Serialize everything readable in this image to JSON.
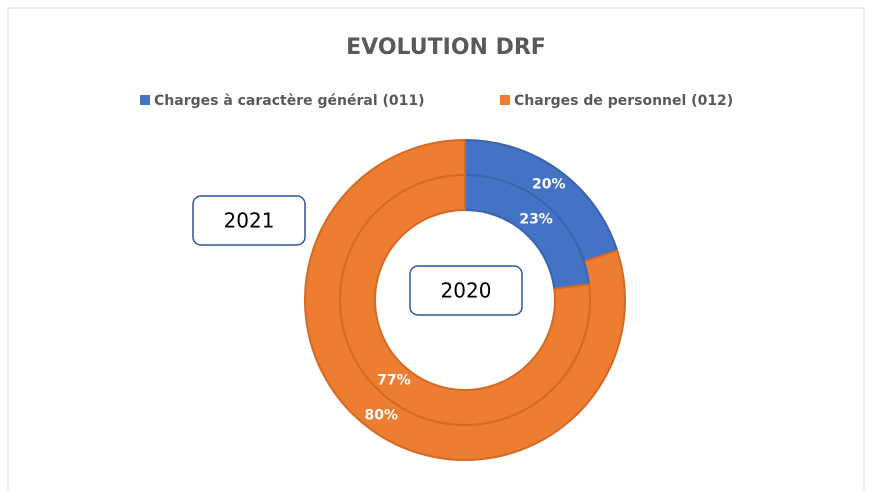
{
  "chart_data": {
    "type": "doughnut",
    "title": "EVOLUTION DRF",
    "categories": [
      "Charges à caractère général (011)",
      "Charges de personnel (012)"
    ],
    "colors": [
      "#4472c4",
      "#ed7d31"
    ],
    "series": [
      {
        "name": "2021",
        "values": [
          20,
          80
        ],
        "value_labels": [
          "20%",
          "80%"
        ]
      },
      {
        "name": "2020",
        "values": [
          23,
          77
        ],
        "value_labels": [
          "23%",
          "77%"
        ]
      }
    ],
    "legend": "top"
  }
}
